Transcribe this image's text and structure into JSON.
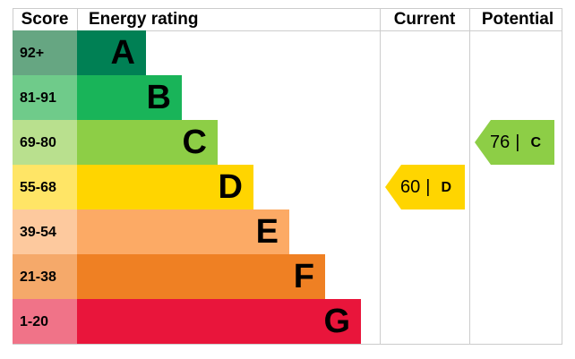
{
  "header": {
    "score": "Score",
    "rating": "Energy rating",
    "current": "Current",
    "potential": "Potential"
  },
  "bands": [
    {
      "score": "92+",
      "letter": "A",
      "color": "#008054",
      "light": "#66a682"
    },
    {
      "score": "81-91",
      "letter": "B",
      "color": "#19b459",
      "light": "#6fcb8a"
    },
    {
      "score": "69-80",
      "letter": "C",
      "color": "#8dce46",
      "light": "#b9e08e"
    },
    {
      "score": "55-68",
      "letter": "D",
      "color": "#ffd500",
      "light": "#ffe566"
    },
    {
      "score": "39-54",
      "letter": "E",
      "color": "#fcaa65",
      "light": "#fdc99e"
    },
    {
      "score": "21-38",
      "letter": "F",
      "color": "#ef8023",
      "light": "#f5a96a"
    },
    {
      "score": "1-20",
      "letter": "G",
      "color": "#e9153b",
      "light": "#f07388"
    }
  ],
  "current": {
    "value": 60,
    "separator": "|",
    "letter": "D"
  },
  "potential": {
    "value": 76,
    "separator": "|",
    "letter": "C"
  }
}
